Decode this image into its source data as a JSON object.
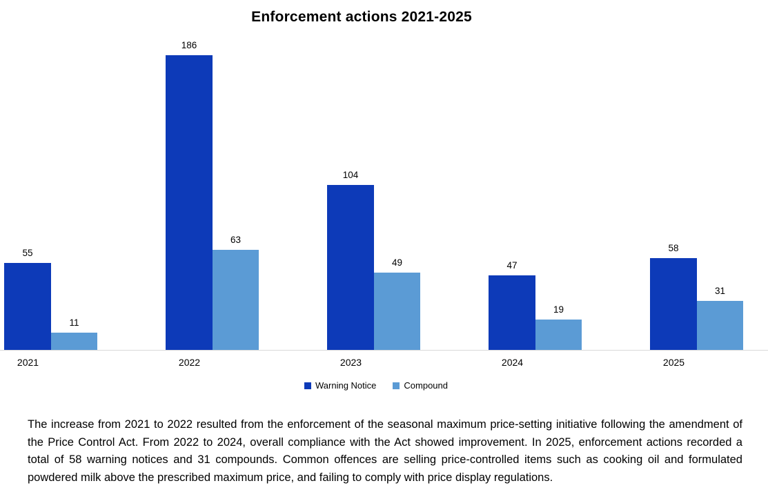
{
  "title": "Enforcement actions 2021-2025",
  "chart_data": {
    "type": "bar",
    "title": "Enforcement actions 2021-2025",
    "categories": [
      "2021",
      "2022",
      "2023",
      "2024",
      "2025"
    ],
    "series": [
      {
        "name": "Warning Notice",
        "color": "#0d3ab8",
        "values": [
          55,
          186,
          104,
          47,
          58
        ]
      },
      {
        "name": "Compound",
        "color": "#5b9bd5",
        "values": [
          11,
          63,
          49,
          19,
          31
        ]
      }
    ],
    "xlabel": "",
    "ylabel": "",
    "ylim": [
      0,
      200
    ],
    "grid": false,
    "axis_line_color": "#d9d9d9",
    "data_labels": true,
    "legend_position": "bottom"
  },
  "caption": "The increase from 2021 to 2022 resulted from the enforcement of  the seasonal maximum price-setting initiative following the amendment of the Price Control Act. From 2022 to 2024, overall compliance with the Act showed improvement. In 2025, enforcement actions recorded a total of 58 warning notices and 31 compounds. Common offences are selling price-controlled items such as cooking oil and formulated powdered milk above the prescribed maximum price, and failing to comply with price display regulations."
}
